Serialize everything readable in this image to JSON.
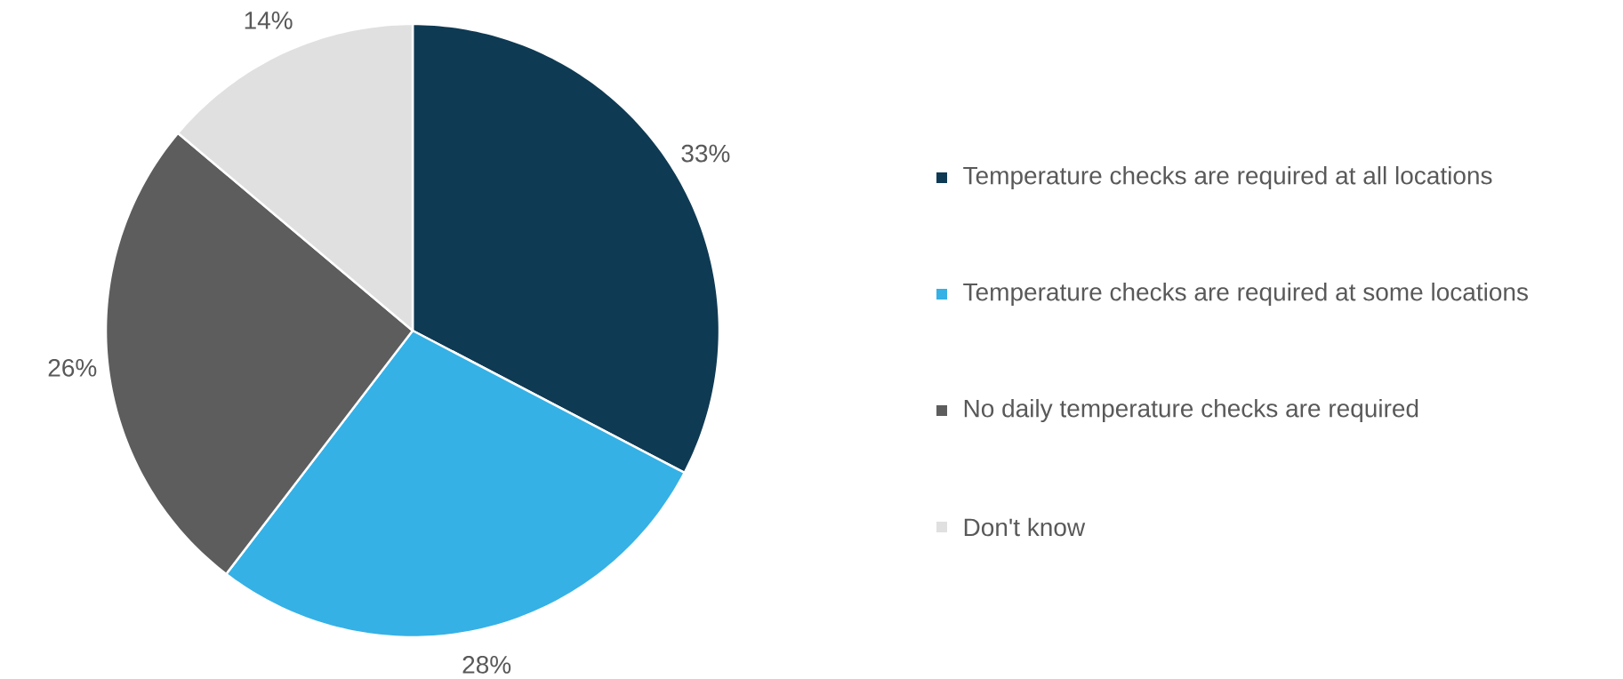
{
  "chart_data": {
    "type": "pie",
    "categories": [
      "Temperature checks are required at all locations",
      "Temperature checks are required at some locations",
      "No daily temperature checks are required",
      "Don't know"
    ],
    "values": [
      33,
      28,
      26,
      14
    ],
    "colors": [
      "#0f3a53",
      "#35b1e6",
      "#5d5d5d",
      "#e0e0e0"
    ],
    "value_labels": [
      "33%",
      "28%",
      "26%",
      "14%"
    ],
    "legend": "right"
  }
}
